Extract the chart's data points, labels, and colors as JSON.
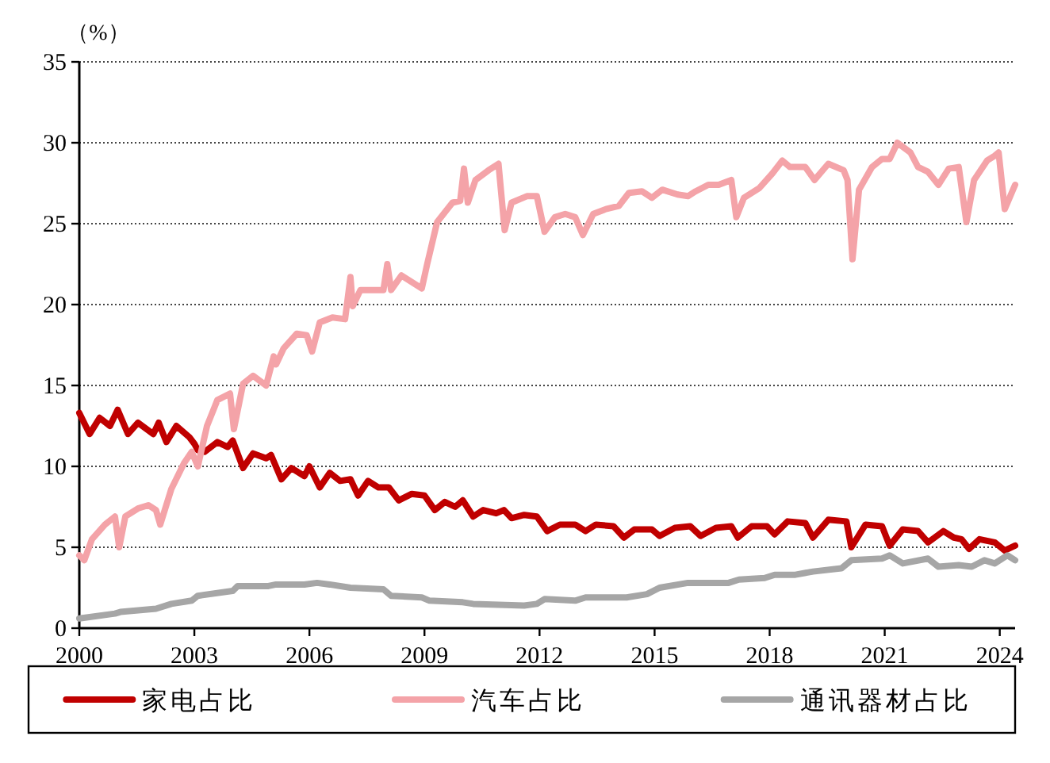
{
  "chart_data": {
    "type": "line",
    "ylabel": "（%）",
    "xlim": [
      2000,
      2024.4
    ],
    "ylim": [
      0,
      35
    ],
    "xticks": [
      2000,
      2003,
      2006,
      2009,
      2012,
      2015,
      2018,
      2021,
      2024
    ],
    "yticks": [
      0,
      5,
      10,
      15,
      20,
      25,
      30,
      35
    ],
    "grid": "y",
    "legend": "bottom",
    "series": [
      {
        "name": "家电占比",
        "color": "#c00000",
        "x": [
          2000.0,
          2000.27,
          2000.53,
          2000.8,
          2001.0,
          2001.27,
          2001.53,
          2001.93,
          2002.07,
          2002.27,
          2002.53,
          2002.87,
          2003.0,
          2003.09,
          2003.27,
          2003.6,
          2003.87,
          2004.0,
          2004.27,
          2004.53,
          2004.87,
          2005.0,
          2005.27,
          2005.53,
          2005.87,
          2006.0,
          2006.27,
          2006.53,
          2006.8,
          2007.07,
          2007.27,
          2007.53,
          2007.8,
          2008.07,
          2008.33,
          2008.67,
          2009.0,
          2009.27,
          2009.53,
          2009.8,
          2010.0,
          2010.27,
          2010.53,
          2010.87,
          2011.07,
          2011.27,
          2011.6,
          2011.93,
          2012.2,
          2012.53,
          2012.93,
          2013.2,
          2013.47,
          2013.93,
          2014.2,
          2014.47,
          2014.93,
          2015.13,
          2015.53,
          2015.93,
          2016.2,
          2016.6,
          2017.0,
          2017.17,
          2017.53,
          2017.93,
          2018.13,
          2018.47,
          2018.93,
          2019.13,
          2019.53,
          2020.0,
          2020.13,
          2020.5,
          2020.93,
          2021.13,
          2021.47,
          2021.87,
          2022.13,
          2022.53,
          2022.8,
          2023.0,
          2023.2,
          2023.47,
          2023.87,
          2024.13,
          2024.4
        ],
        "values": [
          13.3,
          12.0,
          13.0,
          12.5,
          13.5,
          12.0,
          12.7,
          12.0,
          12.7,
          11.5,
          12.5,
          11.8,
          11.4,
          11.0,
          10.9,
          11.5,
          11.2,
          11.6,
          9.9,
          10.8,
          10.5,
          10.7,
          9.2,
          9.9,
          9.4,
          10.0,
          8.7,
          9.6,
          9.1,
          9.2,
          8.2,
          9.1,
          8.7,
          8.7,
          7.9,
          8.3,
          8.2,
          7.3,
          7.8,
          7.5,
          7.9,
          6.9,
          7.3,
          7.1,
          7.3,
          6.8,
          7.0,
          6.9,
          6.0,
          6.4,
          6.4,
          6.0,
          6.4,
          6.3,
          5.6,
          6.1,
          6.1,
          5.7,
          6.2,
          6.3,
          5.7,
          6.2,
          6.3,
          5.6,
          6.3,
          6.3,
          5.8,
          6.6,
          6.5,
          5.6,
          6.7,
          6.6,
          5.0,
          6.4,
          6.3,
          5.1,
          6.1,
          6.0,
          5.3,
          6.0,
          5.6,
          5.5,
          4.9,
          5.5,
          5.3,
          4.8,
          5.1
        ]
      },
      {
        "name": "汽车占比",
        "color": "#f4a3a8",
        "x": [
          2000.0,
          2000.13,
          2000.33,
          2000.67,
          2000.93,
          2001.04,
          2001.2,
          2001.53,
          2001.8,
          2002.0,
          2002.11,
          2002.4,
          2002.73,
          2002.93,
          2003.09,
          2003.33,
          2003.6,
          2003.93,
          2004.03,
          2004.27,
          2004.53,
          2004.87,
          2005.07,
          2005.13,
          2005.33,
          2005.67,
          2005.93,
          2006.07,
          2006.27,
          2006.6,
          2006.93,
          2007.07,
          2007.13,
          2007.33,
          2007.6,
          2007.93,
          2008.03,
          2008.13,
          2008.4,
          2008.93,
          2009.07,
          2009.33,
          2009.73,
          2009.93,
          2010.03,
          2010.13,
          2010.33,
          2010.67,
          2010.93,
          2011.09,
          2011.27,
          2011.67,
          2011.93,
          2012.13,
          2012.4,
          2012.67,
          2012.93,
          2013.13,
          2013.4,
          2013.73,
          2014.07,
          2014.33,
          2014.67,
          2014.93,
          2015.2,
          2015.6,
          2015.87,
          2016.07,
          2016.4,
          2016.67,
          2017.0,
          2017.13,
          2017.33,
          2017.73,
          2018.07,
          2018.33,
          2018.53,
          2018.93,
          2019.17,
          2019.53,
          2019.93,
          2020.03,
          2020.16,
          2020.33,
          2020.67,
          2020.93,
          2021.13,
          2021.33,
          2021.67,
          2021.87,
          2022.13,
          2022.4,
          2022.67,
          2022.93,
          2023.13,
          2023.33,
          2023.67,
          2023.87,
          2023.97,
          2024.13,
          2024.4
        ],
        "values": [
          4.5,
          4.2,
          5.5,
          6.4,
          6.9,
          5.0,
          6.9,
          7.4,
          7.6,
          7.3,
          6.4,
          8.6,
          10.2,
          10.9,
          10.0,
          12.5,
          14.1,
          14.5,
          12.3,
          15.1,
          15.6,
          15.0,
          16.8,
          16.3,
          17.3,
          18.2,
          18.1,
          17.1,
          18.9,
          19.2,
          19.1,
          21.7,
          19.9,
          20.9,
          20.9,
          20.9,
          22.5,
          20.9,
          21.8,
          21.0,
          22.5,
          25.1,
          26.3,
          26.4,
          28.4,
          26.3,
          27.7,
          28.3,
          28.7,
          24.6,
          26.3,
          26.7,
          26.7,
          24.5,
          25.4,
          25.6,
          25.4,
          24.3,
          25.6,
          25.9,
          26.1,
          26.9,
          27.0,
          26.6,
          27.1,
          26.8,
          26.7,
          27.0,
          27.4,
          27.4,
          27.7,
          25.4,
          26.6,
          27.2,
          28.1,
          28.9,
          28.5,
          28.5,
          27.7,
          28.7,
          28.3,
          27.7,
          22.8,
          27.1,
          28.5,
          29.0,
          29.0,
          30.0,
          29.4,
          28.5,
          28.2,
          27.4,
          28.4,
          28.5,
          25.1,
          27.7,
          28.9,
          29.2,
          29.4,
          25.9,
          27.4
        ]
      },
      {
        "name": "通讯器材占比",
        "color": "#a6a6a6",
        "x": [
          2000.0,
          2000.93,
          2001.07,
          2002.0,
          2002.4,
          2002.93,
          2003.09,
          2004.0,
          2004.13,
          2004.93,
          2005.13,
          2005.87,
          2006.2,
          2006.53,
          2007.07,
          2007.93,
          2008.13,
          2008.93,
          2009.13,
          2010.0,
          2010.27,
          2011.6,
          2011.93,
          2012.13,
          2012.93,
          2013.2,
          2014.27,
          2014.8,
          2015.13,
          2015.87,
          2016.93,
          2017.2,
          2017.87,
          2018.13,
          2018.67,
          2019.13,
          2019.87,
          2020.13,
          2020.93,
          2021.13,
          2021.47,
          2022.13,
          2022.4,
          2022.93,
          2023.27,
          2023.6,
          2023.87,
          2024.2,
          2024.4
        ],
        "values": [
          0.6,
          0.9,
          1.0,
          1.2,
          1.5,
          1.7,
          2.0,
          2.3,
          2.6,
          2.6,
          2.7,
          2.7,
          2.8,
          2.7,
          2.5,
          2.4,
          2.0,
          1.9,
          1.7,
          1.6,
          1.5,
          1.4,
          1.5,
          1.8,
          1.7,
          1.9,
          1.9,
          2.1,
          2.5,
          2.8,
          2.8,
          3.0,
          3.1,
          3.3,
          3.3,
          3.5,
          3.7,
          4.2,
          4.3,
          4.5,
          4.0,
          4.3,
          3.8,
          3.9,
          3.8,
          4.2,
          4.0,
          4.5,
          4.2
        ]
      }
    ]
  }
}
